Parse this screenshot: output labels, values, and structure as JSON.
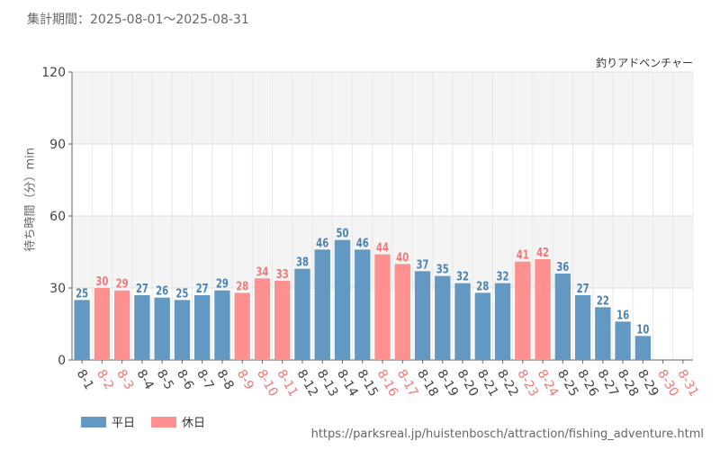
{
  "header": {
    "period": "集計期間：2025-08-01～2025-08-31",
    "attraction": "釣りアドベンチャー"
  },
  "colors": {
    "weekday": "#6398c3",
    "holiday": "#ff9090",
    "weekday_text": "#4a82b4",
    "holiday_text": "#f07878"
  },
  "legend": {
    "weekday": "平日",
    "holiday": "休日"
  },
  "source": "https://parksreal.jp/huistenbosch/attraction/fishing_adventure.html",
  "chart_data": {
    "type": "bar",
    "title": "釣りアドベンチャー",
    "ylabel": "待ち時間（分）min",
    "xlabel": "",
    "ylim": [
      0,
      120
    ],
    "yticks": [
      0,
      30,
      60,
      90,
      120
    ],
    "grid": true,
    "categories": [
      "8-1",
      "8-2",
      "8-3",
      "8-4",
      "8-5",
      "8-6",
      "8-7",
      "8-8",
      "8-9",
      "8-10",
      "8-11",
      "8-12",
      "8-13",
      "8-14",
      "8-15",
      "8-16",
      "8-17",
      "8-18",
      "8-19",
      "8-20",
      "8-21",
      "8-22",
      "8-23",
      "8-24",
      "8-25",
      "8-26",
      "8-27",
      "8-28",
      "8-29",
      "8-30",
      "8-31"
    ],
    "values": [
      25,
      30,
      29,
      27,
      26,
      25,
      27,
      29,
      28,
      34,
      33,
      38,
      46,
      50,
      46,
      44,
      40,
      37,
      35,
      32,
      28,
      32,
      41,
      42,
      36,
      27,
      22,
      16,
      10,
      null,
      null
    ],
    "day_type": [
      "weekday",
      "holiday",
      "holiday",
      "weekday",
      "weekday",
      "weekday",
      "weekday",
      "weekday",
      "holiday",
      "holiday",
      "holiday",
      "weekday",
      "weekday",
      "weekday",
      "weekday",
      "holiday",
      "holiday",
      "weekday",
      "weekday",
      "weekday",
      "weekday",
      "weekday",
      "holiday",
      "holiday",
      "weekday",
      "weekday",
      "weekday",
      "weekday",
      "weekday",
      "holiday",
      "holiday"
    ]
  }
}
